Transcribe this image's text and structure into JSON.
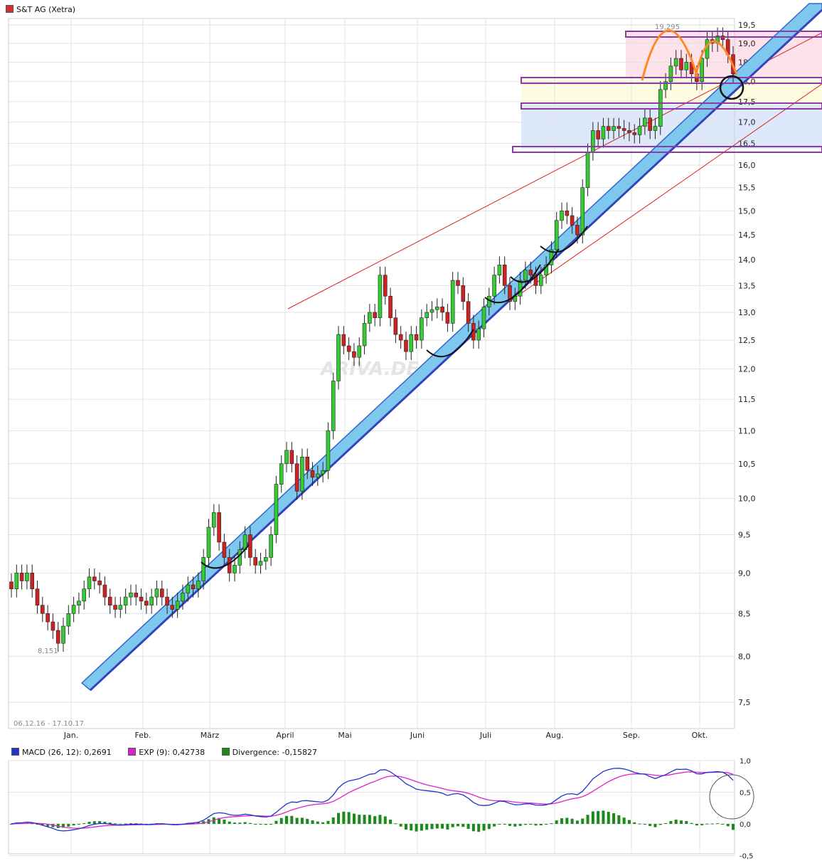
{
  "header": {
    "title": "S&T AG (Xetra)",
    "title_color": "#d03030"
  },
  "price_chart": {
    "y_ticks": [
      "19,5",
      "19,0",
      "18,5",
      "18,0",
      "17,5",
      "17,0",
      "16,5",
      "16,0",
      "15,5",
      "15,0",
      "14,5",
      "14,0",
      "13,5",
      "13,0",
      "12,5",
      "12,0",
      "11,5",
      "11,0",
      "10,5",
      "10,0",
      "9,5",
      "9,0",
      "8,5",
      "8,0",
      "7,5"
    ],
    "x_labels": [
      "Jan.",
      "Feb.",
      "März",
      "April",
      "Mai",
      "Juni",
      "Juli",
      "Aug.",
      "Sep.",
      "Okt."
    ],
    "date_range": "06.12.16 - 17.10.17",
    "high_label": "19,295",
    "low_label": "8,151",
    "watermark": "ARIVA.DE"
  },
  "macd_legend": {
    "macd": {
      "label": "MACD (26, 12): 0,2691",
      "color": "#2233cc"
    },
    "exp": {
      "label": "EXP (9): 0,42738",
      "color": "#dd22cc"
    },
    "div": {
      "label": "Divergence: -0,15827",
      "color": "#1a8a1a"
    }
  },
  "macd_chart": {
    "y_ticks": [
      "1,0",
      "0,5",
      "0,0",
      "-0,5"
    ]
  },
  "chart_data": {
    "type": "candlestick",
    "title": "S&T AG (Xetra)",
    "date_range": "06.12.16 - 17.10.17",
    "ylim": [
      7.3,
      19.75
    ],
    "y_scale": "log",
    "months": [
      "Jan.",
      "Feb.",
      "März",
      "April",
      "Mai",
      "Juni",
      "Juli",
      "Aug.",
      "Sep.",
      "Okt."
    ],
    "annotations": {
      "high": 19.295,
      "low": 8.151
    },
    "closes": [
      8.8,
      9.0,
      8.9,
      9.0,
      8.8,
      8.6,
      8.5,
      8.4,
      8.3,
      8.15,
      8.35,
      8.5,
      8.6,
      8.65,
      8.8,
      8.95,
      8.9,
      8.85,
      8.7,
      8.6,
      8.55,
      8.6,
      8.7,
      8.75,
      8.7,
      8.65,
      8.6,
      8.7,
      8.8,
      8.7,
      8.6,
      8.55,
      8.65,
      8.75,
      8.85,
      8.8,
      8.9,
      9.2,
      9.6,
      9.8,
      9.4,
      9.2,
      9.0,
      9.1,
      9.3,
      9.5,
      9.2,
      9.1,
      9.15,
      9.2,
      9.5,
      10.2,
      10.5,
      10.7,
      10.5,
      10.1,
      10.6,
      10.4,
      10.3,
      10.35,
      10.4,
      11.0,
      11.8,
      12.6,
      12.4,
      12.3,
      12.2,
      12.4,
      12.8,
      13.0,
      12.9,
      13.7,
      13.3,
      12.9,
      12.6,
      12.5,
      12.3,
      12.6,
      12.5,
      12.9,
      13.0,
      13.05,
      13.1,
      13.0,
      12.8,
      13.6,
      13.5,
      13.2,
      12.8,
      12.5,
      12.7,
      13.1,
      13.3,
      13.7,
      13.9,
      13.5,
      13.2,
      13.3,
      13.6,
      13.8,
      13.7,
      13.5,
      13.7,
      13.9,
      14.2,
      14.8,
      15.0,
      14.9,
      14.7,
      14.5,
      15.5,
      16.3,
      16.8,
      16.6,
      16.9,
      16.8,
      16.9,
      16.85,
      16.8,
      16.75,
      16.7,
      16.9,
      17.1,
      16.8,
      16.9,
      17.8,
      18.0,
      18.4,
      18.6,
      18.3,
      18.5,
      18.2,
      18.0,
      18.6,
      19.1,
      19.0,
      19.2,
      19.1,
      18.7,
      18.2
    ]
  }
}
